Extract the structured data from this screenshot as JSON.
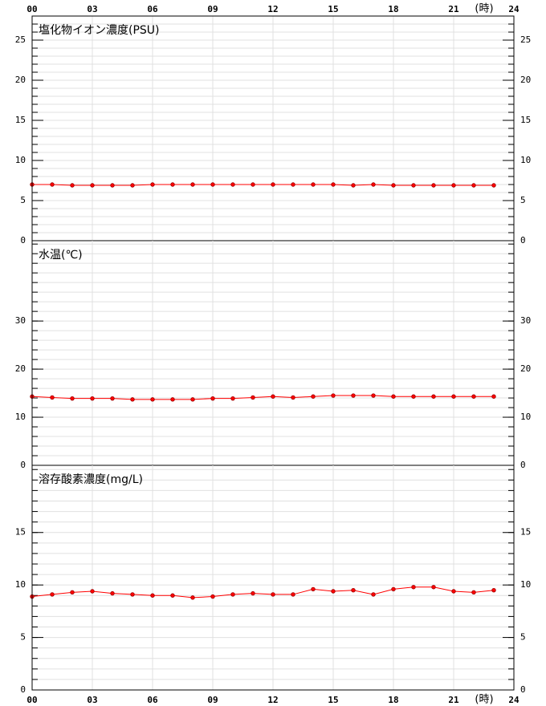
{
  "chart_data": [
    {
      "type": "line",
      "title": "塩化物イオン濃度(PSU)",
      "x_unit": "(時)",
      "x": [
        0,
        1,
        2,
        3,
        4,
        5,
        6,
        7,
        8,
        9,
        10,
        11,
        12,
        13,
        14,
        15,
        16,
        17,
        18,
        19,
        20,
        21,
        22,
        23
      ],
      "xlim": [
        0,
        24
      ],
      "xticks": [
        {
          "value": 0,
          "label": "00"
        },
        {
          "value": 3,
          "label": "03"
        },
        {
          "value": 6,
          "label": "06"
        },
        {
          "value": 9,
          "label": "09"
        },
        12,
        15,
        18,
        21,
        24
      ],
      "series": [
        {
          "color": "#ff0000",
          "values": [
            7.0,
            7.0,
            6.9,
            6.9,
            6.9,
            6.9,
            7.0,
            7.0,
            7.0,
            7.0,
            7.0,
            7.0,
            7.0,
            7.0,
            7.0,
            7.0,
            6.9,
            7.0,
            6.9,
            6.9,
            6.9,
            6.9,
            6.9,
            6.9
          ]
        }
      ],
      "ylim": [
        0,
        28
      ],
      "yticks": [
        0,
        5,
        10,
        15,
        20,
        25
      ],
      "grid": true
    },
    {
      "type": "line",
      "title": "水温(℃)",
      "x": [
        0,
        1,
        2,
        3,
        4,
        5,
        6,
        7,
        8,
        9,
        10,
        11,
        12,
        13,
        14,
        15,
        16,
        17,
        18,
        19,
        20,
        21,
        22,
        23
      ],
      "xlim": [
        0,
        24
      ],
      "xticks": [
        0,
        3,
        6,
        9,
        12,
        15,
        18,
        21,
        24
      ],
      "series": [
        {
          "color": "#ff0000",
          "values": [
            14.3,
            14.1,
            13.9,
            13.9,
            13.9,
            13.7,
            13.7,
            13.7,
            13.7,
            13.9,
            13.9,
            14.1,
            14.3,
            14.1,
            14.3,
            14.5,
            14.5,
            14.5,
            14.3,
            14.3,
            14.3,
            14.3,
            14.3,
            14.3
          ]
        }
      ],
      "ylim": [
        0,
        46.7
      ],
      "yticks": [
        0,
        10,
        20,
        30
      ],
      "grid": true
    },
    {
      "type": "line",
      "title": "溶存酸素濃度(mg/L)",
      "x_unit": "(時)",
      "x": [
        0,
        1,
        2,
        3,
        4,
        5,
        6,
        7,
        8,
        9,
        10,
        11,
        12,
        13,
        14,
        15,
        16,
        17,
        18,
        19,
        20,
        21,
        22,
        23
      ],
      "xlim": [
        0,
        24
      ],
      "xticks": [
        {
          "value": 0,
          "label": "00"
        },
        {
          "value": 3,
          "label": "03"
        },
        {
          "value": 6,
          "label": "06"
        },
        {
          "value": 9,
          "label": "09"
        },
        12,
        15,
        18,
        21,
        24
      ],
      "series": [
        {
          "color": "#ff0000",
          "values": [
            8.9,
            9.1,
            9.3,
            9.4,
            9.2,
            9.1,
            9.0,
            9.0,
            8.8,
            8.9,
            9.1,
            9.2,
            9.1,
            9.1,
            9.6,
            9.4,
            9.5,
            9.1,
            9.6,
            9.8,
            9.8,
            9.4,
            9.3,
            9.5
          ]
        }
      ],
      "ylim": [
        0,
        21.4
      ],
      "yticks": [
        0,
        5,
        10,
        15
      ],
      "grid": true
    }
  ]
}
